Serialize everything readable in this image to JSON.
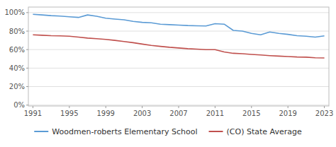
{
  "chart_data": {
    "type": "line",
    "x": [
      1991,
      1992,
      1993,
      1994,
      1995,
      1996,
      1997,
      1998,
      1999,
      2000,
      2001,
      2002,
      2003,
      2004,
      2005,
      2006,
      2007,
      2008,
      2009,
      2010,
      2011,
      2012,
      2013,
      2014,
      2015,
      2016,
      2017,
      2018,
      2019,
      2020,
      2021,
      2022,
      2023
    ],
    "series": [
      {
        "name": "Woodmen-roberts Elementary School",
        "color": "#5b9bd5",
        "values": [
          0.982,
          0.975,
          0.967,
          0.963,
          0.955,
          0.948,
          0.975,
          0.96,
          0.94,
          0.93,
          0.922,
          0.905,
          0.895,
          0.89,
          0.875,
          0.87,
          0.865,
          0.86,
          0.858,
          0.855,
          0.88,
          0.875,
          0.808,
          0.8,
          0.775,
          0.76,
          0.79,
          0.775,
          0.765,
          0.75,
          0.745,
          0.735,
          0.748
        ]
      },
      {
        "name": "(CO) State Average",
        "color": "#c0504d",
        "values": [
          0.76,
          0.755,
          0.75,
          0.748,
          0.745,
          0.735,
          0.725,
          0.718,
          0.71,
          0.7,
          0.688,
          0.675,
          0.66,
          0.645,
          0.635,
          0.625,
          0.618,
          0.61,
          0.605,
          0.6,
          0.6,
          0.575,
          0.56,
          0.555,
          0.548,
          0.542,
          0.535,
          0.53,
          0.525,
          0.52,
          0.518,
          0.512,
          0.51
        ]
      }
    ],
    "xlim": [
      1990.5,
      2023.5
    ],
    "xticks": [
      1991,
      1995,
      1999,
      2003,
      2007,
      2011,
      2015,
      2019,
      2023
    ],
    "ylim": [
      -0.01,
      1.06
    ],
    "yticks": [
      {
        "value": 0.0,
        "label": "0%"
      },
      {
        "value": 0.2,
        "label": "20%"
      },
      {
        "value": 0.4,
        "label": "40%"
      },
      {
        "value": 0.6,
        "label": "60%"
      },
      {
        "value": 0.8,
        "label": "80%"
      },
      {
        "value": 1.0,
        "label": "100%"
      }
    ],
    "grid": true,
    "legend": "bottom"
  }
}
